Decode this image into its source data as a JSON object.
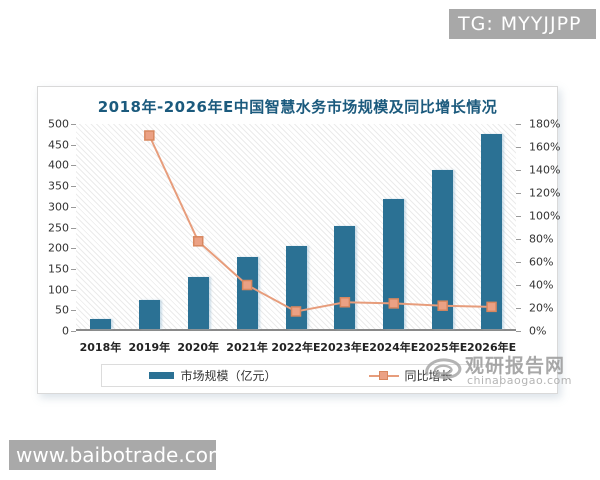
{
  "badge": {
    "text": "TG: MYYJJPP"
  },
  "site_watermark": {
    "text": "www.baibotrade.com"
  },
  "brand_watermark": {
    "name": "观研报告网",
    "domain": "chinabaogao.com"
  },
  "chart": {
    "title": "2018年-2026年E中国智慧水务市场规模及同比增长情况",
    "title_color": "#1b5a7d",
    "bar_color": "#2b7194",
    "line_color": "#e79d7c",
    "marker_fill": "#eba184",
    "marker_border": "#d8875f",
    "legend": [
      {
        "label": "市场规模（亿元）",
        "type": "bar"
      },
      {
        "label": "同比增长",
        "type": "line"
      }
    ]
  },
  "chart_data": {
    "type": "bar",
    "title": "2018年-2026年E中国智慧水务市场规模及同比增长情况",
    "categories": [
      "2018年",
      "2019年",
      "2020年",
      "2021年",
      "2022年E",
      "2023年E",
      "2024年E",
      "2025年E",
      "2026年E"
    ],
    "series": [
      {
        "name": "市场规模（亿元）",
        "type": "bar",
        "axis": "left",
        "values": [
          25,
          70,
          125,
          175,
          200,
          250,
          315,
          385,
          470
        ],
        "color": "#2b7194"
      },
      {
        "name": "同比增长",
        "type": "line",
        "axis": "right",
        "unit": "%",
        "values": [
          null,
          170,
          78,
          40,
          17,
          25,
          24,
          22,
          21
        ],
        "color": "#e79d7c"
      }
    ],
    "left_axis": {
      "min": 0,
      "max": 500,
      "step": 50,
      "labels": [
        "0",
        "50",
        "100",
        "150",
        "200",
        "250",
        "300",
        "350",
        "400",
        "450",
        "500"
      ]
    },
    "right_axis": {
      "min": 0,
      "max": 180,
      "step": 20,
      "suffix": "%",
      "labels": [
        "0%",
        "20%",
        "40%",
        "60%",
        "80%",
        "100%",
        "120%",
        "140%",
        "160%",
        "180%"
      ]
    },
    "grid": false,
    "plot_background": "diagonal-hatch",
    "legend_position": "bottom"
  }
}
